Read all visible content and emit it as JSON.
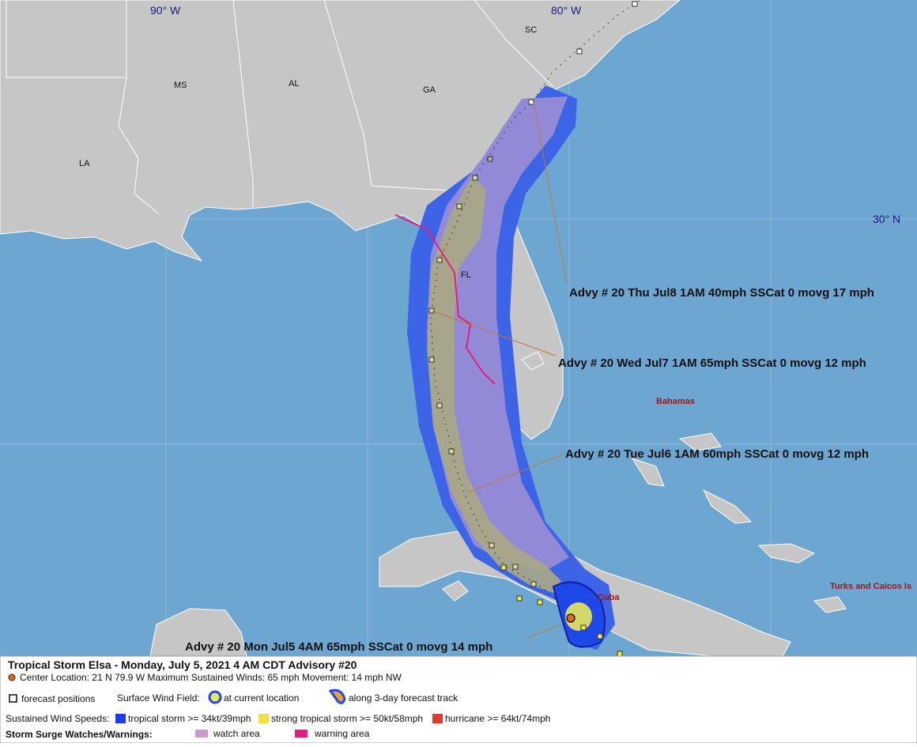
{
  "map": {
    "grid_labels": [
      "90° W",
      "80° W",
      "30° N"
    ],
    "state_labels": [
      "SC",
      "MS",
      "AL",
      "GA",
      "LA",
      "FL"
    ],
    "place_labels": [
      "Bahamas",
      "Cuba",
      "Turks and Caicos Is"
    ],
    "advisories": [
      "Advy # 20 Thu Jul8 1AM  40mph SSCat 0 movg 17 mph",
      "Advy # 20 Wed Jul7 1AM  65mph SSCat 0 movg 12 mph",
      "Advy # 20 Tue Jul6 1AM  60mph SSCat 0 movg 12 mph",
      "Advy # 20 Mon Jul5 4AM  65mph SSCat 0 movg 14 mph"
    ]
  },
  "legend": {
    "title": "Tropical Storm Elsa  -  Monday, July 5, 2021  4 AM CDT   Advisory #20",
    "center_info": "Center Location: 21 N  79.9 W   Maximum Sustained Winds: 65 mph   Movement: 14 mph NW",
    "forecast_positions": "forecast positions",
    "wind_field_label": "Surface Wind Field:",
    "current_location": "at current location",
    "forecast_track": "along 3-day forecast track",
    "wind_speeds_label": "Sustained Wind Speeds:",
    "wind_speeds": [
      "tropical storm >= 34kt/39mph",
      "strong tropical storm >= 50kt/58mph",
      "hurricane >= 64kt/74mph"
    ],
    "surge_label": "Storm Surge Watches/Warnings:",
    "surge": [
      "watch area",
      "warning area"
    ]
  }
}
